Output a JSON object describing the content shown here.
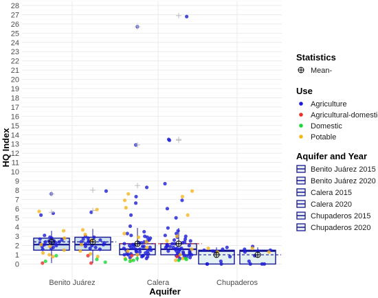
{
  "chart_data": {
    "type": "box",
    "xlabel": "Aquifer",
    "ylabel": "HQ Index",
    "categories": [
      "Benito Juárez",
      "Calera",
      "Chupaderos"
    ],
    "ylim": [
      -2,
      28
    ],
    "yticks": [
      0,
      1,
      2,
      3,
      4,
      5,
      6,
      7,
      8,
      9,
      10,
      11,
      12,
      13,
      14,
      15,
      16,
      17,
      18,
      19,
      20,
      21,
      22,
      23,
      24,
      25,
      26,
      27,
      28
    ],
    "grid": true,
    "legend_position": "right",
    "boxes": [
      {
        "name": "Benito Juárez 2015",
        "aquifer": "Benito Juárez",
        "year": "2015",
        "q1": 1.5,
        "median": 2.1,
        "q3": 2.8,
        "mean": 2.4,
        "whisker_low": 0.1,
        "whisker_high": 3.6,
        "fill": "#cfe2ee"
      },
      {
        "name": "Benito Juárez 2020",
        "aquifer": "Benito Juárez",
        "year": "2020",
        "q1": 1.5,
        "median": 2.1,
        "q3": 2.9,
        "mean": 2.4,
        "whisker_low": 0.1,
        "whisker_high": 3.8,
        "fill": "#cfe2ee"
      },
      {
        "name": "Calera 2015",
        "aquifer": "Calera",
        "year": "2015",
        "q1": 1.0,
        "median": 1.6,
        "q3": 2.2,
        "mean": 2.2,
        "whisker_low": 0.3,
        "whisker_high": 3.9,
        "fill": "#e9eef5"
      },
      {
        "name": "Calera 2020",
        "aquifer": "Calera",
        "year": "2020",
        "q1": 1.0,
        "median": 1.6,
        "q3": 2.2,
        "mean": 2.2,
        "whisker_low": 0.3,
        "whisker_high": 3.9,
        "fill": "#e9eef5"
      },
      {
        "name": "Chupaderos 2015",
        "aquifer": "Chupaderos",
        "year": "2015",
        "q1": 0.0,
        "median": 1.4,
        "q3": 1.5,
        "mean": 1.0,
        "whisker_low": 0.0,
        "whisker_high": 1.8,
        "fill": "#e4f1f2"
      },
      {
        "name": "Chupaderos 2020",
        "aquifer": "Chupaderos",
        "year": "2020",
        "q1": 0.0,
        "median": 1.4,
        "q3": 1.5,
        "mean": 1.0,
        "whisker_low": 0.0,
        "whisker_high": 1.8,
        "fill": "#e4f1f2"
      }
    ],
    "points": [
      {
        "box": "Benito Juárez 2015",
        "use": "Agriculture",
        "y": [
          7.6,
          5.5,
          5.3,
          3.1,
          2.9,
          2.8,
          2.7,
          2.6,
          2.5,
          2.5,
          2.4,
          2.4,
          2.3,
          2.2,
          2.2,
          2.1,
          2.0,
          1.9,
          1.8,
          1.7,
          1.6
        ]
      },
      {
        "box": "Benito Juárez 2015",
        "use": "Potable",
        "y": [
          5.7,
          3.6,
          2.8,
          2.1,
          1.9,
          1.5,
          1.2,
          1.0,
          0.8
        ]
      },
      {
        "box": "Benito Juárez 2015",
        "use": "Domestic",
        "y": [
          0.9,
          0.3
        ]
      },
      {
        "box": "Benito Juárez 2015",
        "use": "Agricultural-domestic",
        "y": [
          0.1
        ]
      },
      {
        "box": "Benito Juárez 2020",
        "use": "Agriculture",
        "y": [
          7.9,
          5.6,
          3.0,
          2.9,
          2.8,
          2.7,
          2.6,
          2.5,
          2.4,
          2.4,
          2.3,
          2.2,
          2.1,
          2.0,
          1.9,
          1.8,
          1.7,
          1.6
        ]
      },
      {
        "box": "Benito Juárez 2020",
        "use": "Potable",
        "y": [
          5.9,
          3.7,
          3.2,
          2.6,
          2.1,
          1.4,
          1.1,
          0.8
        ]
      },
      {
        "box": "Benito Juárez 2020",
        "use": "Domestic",
        "y": [
          0.5,
          0.2
        ]
      },
      {
        "box": "Benito Juárez 2020",
        "use": "Agricultural-domestic",
        "y": [
          0.9,
          0.1
        ]
      },
      {
        "box": "Calera 2015",
        "use": "Agriculture",
        "y": [
          25.7,
          12.9,
          8.3,
          7.3,
          6.6,
          5.3,
          4.1,
          3.5,
          3.3,
          3.1,
          3.0,
          2.9,
          2.8,
          2.6,
          2.5,
          2.4,
          2.3,
          2.3,
          2.2,
          2.1,
          2.1,
          2.0,
          2.0,
          1.9,
          1.9,
          1.8,
          1.8,
          1.7,
          1.7,
          1.6,
          1.6,
          1.5,
          1.5,
          1.4,
          1.4,
          1.3,
          1.3,
          1.2,
          1.2,
          1.1,
          1.1,
          1.0,
          1.0,
          0.9,
          0.9,
          0.8,
          0.8,
          0.7,
          0.6
        ]
      },
      {
        "box": "Calera 2015",
        "use": "Potable",
        "y": [
          7.6,
          6.9,
          6.1,
          3.3,
          2.9,
          2.4,
          1.8,
          1.4,
          1.0,
          0.6,
          0.4
        ]
      },
      {
        "box": "Calera 2015",
        "use": "Domestic",
        "y": [
          0.6,
          0.5,
          0.4,
          0.3
        ]
      },
      {
        "box": "Calera 2015",
        "use": "Agricultural-domestic",
        "y": [
          0.9
        ]
      },
      {
        "box": "Calera 2020",
        "use": "Agriculture",
        "y": [
          26.8,
          13.5,
          13.4,
          8.7,
          6.9,
          6.0,
          5.0,
          3.9,
          3.6,
          3.3,
          3.1,
          3.0,
          2.9,
          2.7,
          2.6,
          2.5,
          2.4,
          2.3,
          2.2,
          2.2,
          2.1,
          2.0,
          2.0,
          1.9,
          1.9,
          1.8,
          1.8,
          1.7,
          1.7,
          1.6,
          1.6,
          1.5,
          1.5,
          1.4,
          1.4,
          1.3,
          1.3,
          1.2,
          1.2,
          1.1,
          1.1,
          1.0,
          1.0,
          0.9,
          0.9,
          0.8,
          0.8,
          0.7,
          0.6
        ]
      },
      {
        "box": "Calera 2020",
        "use": "Potable",
        "y": [
          7.9,
          7.3,
          5.3,
          3.0,
          2.5,
          1.6,
          1.0,
          0.6,
          0.4
        ]
      },
      {
        "box": "Calera 2020",
        "use": "Domestic",
        "y": [
          0.6,
          0.5,
          0.4
        ]
      },
      {
        "box": "Calera 2020",
        "use": "Agricultural-domestic",
        "y": [
          0.8
        ]
      },
      {
        "box": "Chupaderos 2015",
        "use": "Agriculture",
        "y": [
          1.8,
          1.6,
          1.5,
          1.4,
          1.3,
          0.8,
          0.3,
          0.0,
          0.0,
          0.0
        ]
      },
      {
        "box": "Chupaderos 2015",
        "use": "Potable",
        "y": [
          1.7,
          1.3
        ]
      },
      {
        "box": "Chupaderos 2020",
        "use": "Agriculture",
        "y": [
          1.9,
          1.6,
          1.5,
          1.4,
          1.3,
          0.9,
          0.3,
          0.0,
          0.0,
          0.0
        ]
      },
      {
        "box": "Chupaderos 2020",
        "use": "Potable",
        "y": [
          1.7,
          1.3
        ]
      }
    ],
    "outlier_marks": [
      {
        "box": "Benito Juárez 2015",
        "y": [
          7.6,
          5.6
        ]
      },
      {
        "box": "Benito Juárez 2020",
        "y": [
          8.0,
          5.8
        ]
      },
      {
        "box": "Calera 2015",
        "y": [
          25.7,
          12.9,
          8.5
        ]
      },
      {
        "box": "Calera 2020",
        "y": [
          26.9,
          13.5,
          13.4
        ]
      }
    ],
    "use_colors": {
      "Agriculture": "#1c1cd6",
      "Agricultural-domestic": "#e8302a",
      "Domestic": "#18d83a",
      "Potable": "#f4b51a"
    },
    "box_stroke": "#141490",
    "mean_line_colors": [
      "#141490",
      "#c62626",
      "#141490"
    ]
  },
  "legend": {
    "statistics_title": "Statistics",
    "mean_label": "Mean-",
    "use_title": "Use",
    "use_items": [
      "Agriculture",
      "Agricultural-domestic",
      "Domestic",
      "Potable"
    ],
    "aquifer_year_title": "Aquifer and Year",
    "aquifer_year_items": [
      "Benito Juárez 2015",
      "Benito Juárez 2020",
      "Calera 2015",
      "Calera 2020",
      "Chupaderos 2015",
      "Chupaderos 2020"
    ]
  }
}
